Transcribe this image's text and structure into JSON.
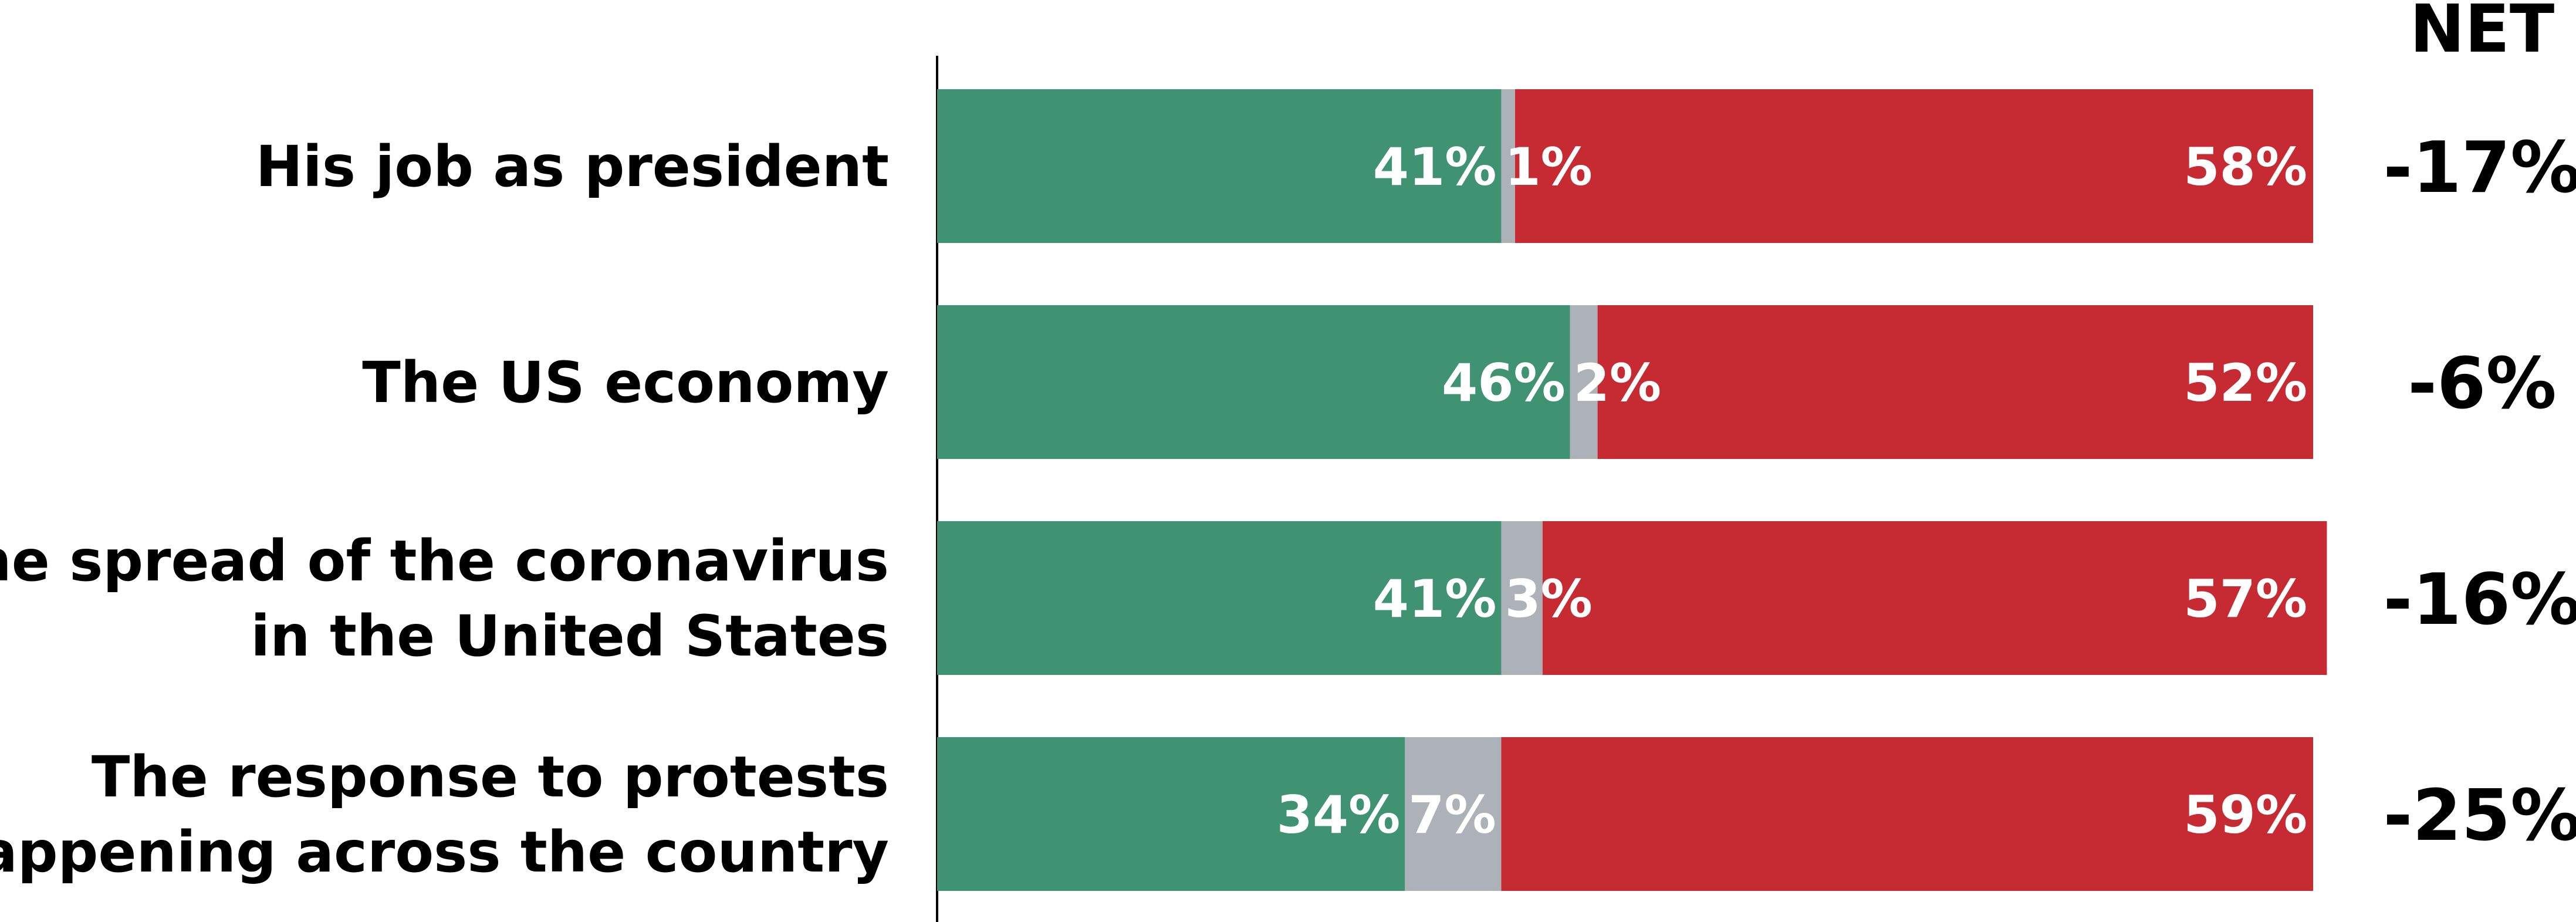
{
  "chart_data": {
    "type": "bar",
    "orientation": "horizontal",
    "stacked": true,
    "percent": true,
    "net_header": "NET",
    "categories": [
      [
        "His job as president"
      ],
      [
        "The US economy"
      ],
      [
        "The spread of the coronavirus",
        "in the United States"
      ],
      [
        "The response to protests",
        "happening across the country"
      ]
    ],
    "series": [
      {
        "key": "approve",
        "values": [
          41,
          46,
          41,
          34
        ],
        "labels": [
          "41%",
          "46%",
          "41%",
          "34%"
        ],
        "color": "#3f9272"
      },
      {
        "key": "no_opinion",
        "values": [
          1,
          2,
          3,
          7
        ],
        "labels": [
          "1%",
          "2%",
          "3%",
          "7%"
        ],
        "color": "#adb2b8"
      },
      {
        "key": "disapprove",
        "values": [
          58,
          52,
          57,
          59
        ],
        "labels": [
          "58%",
          "52%",
          "57%",
          "59%"
        ],
        "color": "#c62b33"
      }
    ],
    "net": [
      "-17%",
      "-6%",
      "-16%",
      "-25%"
    ],
    "xlim": [
      0,
      100
    ],
    "grid": false,
    "legend": "none"
  }
}
